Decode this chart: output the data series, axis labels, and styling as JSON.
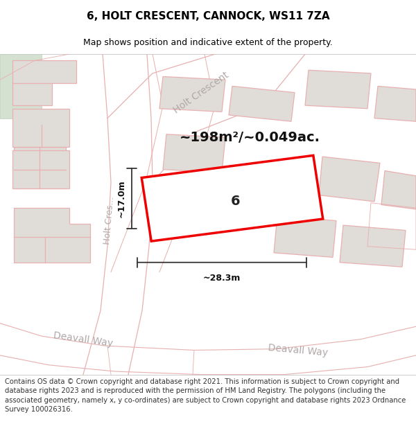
{
  "title": "6, HOLT CRESCENT, CANNOCK, WS11 7ZA",
  "subtitle": "Map shows position and indicative extent of the property.",
  "area_text": "~198m²/~0.049ac.",
  "width_label": "~28.3m",
  "height_label": "~17.0m",
  "property_number": "6",
  "footer": "Contains OS data © Crown copyright and database right 2021. This information is subject to Crown copyright and database rights 2023 and is reproduced with the permission of HM Land Registry. The polygons (including the associated geometry, namely x, y co-ordinates) are subject to Crown copyright and database rights 2023 Ordnance Survey 100026316.",
  "map_bg": "#f7f5f3",
  "building_fill": "#e0ddd8",
  "building_edge": "#ccb8b8",
  "boundary_color": "#e8b0b0",
  "highlight_fill": "#ffffff",
  "highlight_edge": "#ee0000",
  "dim_color": "#333333",
  "road_label_color": "#b0a8a8",
  "green_fill": "#d4e0d0",
  "title_fontsize": 11,
  "subtitle_fontsize": 9,
  "area_fontsize": 14,
  "dim_fontsize": 9,
  "road_fontsize": 9,
  "number_fontsize": 14,
  "footer_fontsize": 7.2
}
